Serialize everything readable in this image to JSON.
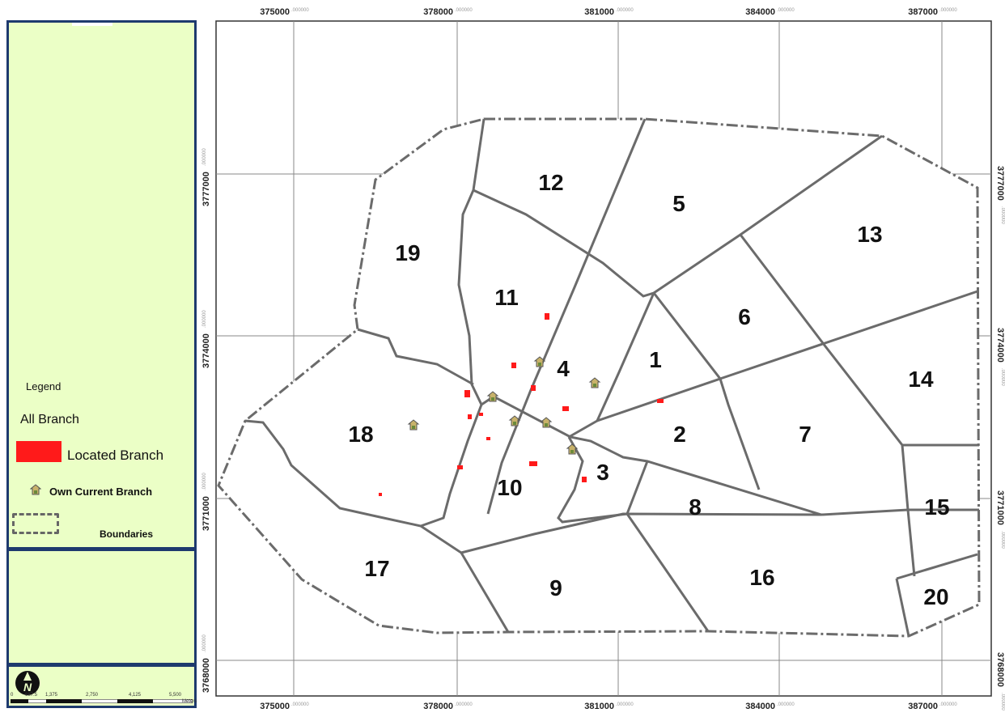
{
  "legend": {
    "title": "Legend",
    "all_branch": "All Branch",
    "located_branch": "Located Branch",
    "own_current_branch": "Own Current Branch",
    "boundaries": "Boundaries",
    "located_color": "#ff1a1a",
    "boundary_color": "#6b6b6b"
  },
  "scale": {
    "labels": [
      "0",
      "687.5",
      "1,375",
      "2,750",
      "4,125",
      "5,500"
    ],
    "unit": "Meters"
  },
  "axes": {
    "x_ticks": [
      {
        "main": "375000",
        "sub": ".000000"
      },
      {
        "main": "378000",
        "sub": ".000000"
      },
      {
        "main": "381000",
        "sub": ".000000"
      },
      {
        "main": "384000",
        "sub": ".000000"
      },
      {
        "main": "387000",
        "sub": ".000000"
      }
    ],
    "y_ticks": [
      {
        "main": "3777000",
        "sub": ".000000"
      },
      {
        "main": "3774000",
        "sub": ".000000"
      },
      {
        "main": "3771000",
        "sub": ".000000"
      },
      {
        "main": "3768000",
        "sub": ".000000"
      }
    ]
  },
  "zones": [
    "1",
    "2",
    "3",
    "4",
    "5",
    "6",
    "7",
    "8",
    "9",
    "10",
    "11",
    "12",
    "13",
    "14",
    "15",
    "16",
    "17",
    "18",
    "19",
    "20"
  ],
  "icons": {
    "north_arrow": "north-arrow-icon",
    "own_branch": "house-icon"
  }
}
